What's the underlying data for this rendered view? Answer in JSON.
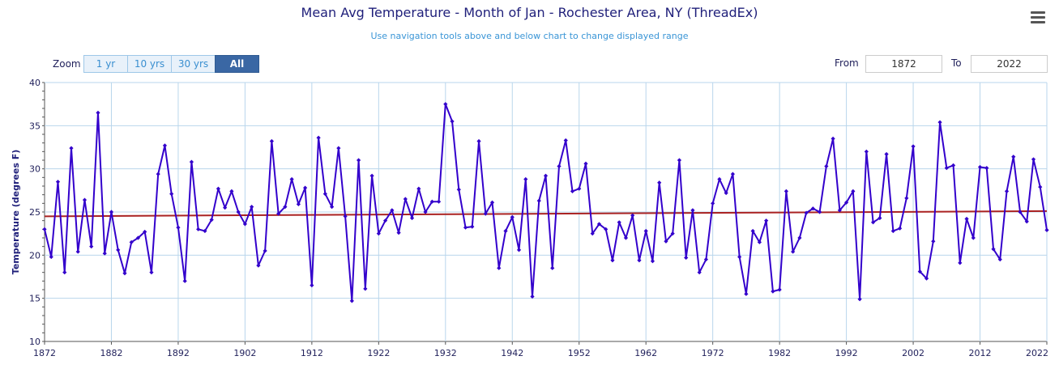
{
  "header": {
    "title": "Mean Avg Temperature - Month of Jan - Rochester Area, NY (ThreadEx)",
    "subtitle": "Use navigation tools above and below chart to change displayed range"
  },
  "toolbar": {
    "zoom_label": "Zoom",
    "zoom_buttons": [
      "1 yr",
      "10 yrs",
      "30 yrs",
      "All"
    ],
    "active_zoom": "All",
    "from_label": "From",
    "from_value": "1872",
    "to_label": "To",
    "to_value": "2022",
    "menu_icon": "hamburger-menu-icon"
  },
  "colors": {
    "series": "#3300cc",
    "trend": "#aa2222",
    "grid": "#b9d6ec",
    "active_button": "#3a67a4"
  },
  "chart_data": {
    "type": "line",
    "title": "Mean Avg Temperature - Month of Jan - Rochester Area, NY (ThreadEx)",
    "xlabel": "",
    "ylabel": "Temperature (degrees F)",
    "xlim": [
      1872,
      2022
    ],
    "ylim": [
      10,
      40
    ],
    "yticks": [
      10,
      15,
      20,
      25,
      30,
      35,
      40
    ],
    "xticks": [
      1872,
      1882,
      1892,
      1902,
      1912,
      1922,
      1932,
      1942,
      1952,
      1962,
      1972,
      1982,
      1992,
      2002,
      2012,
      2022
    ],
    "grid": true,
    "x_start": 1872,
    "series": [
      {
        "values": [
          23.0,
          19.8,
          28.5,
          18.0,
          32.4,
          20.4,
          26.4,
          21.0,
          36.5,
          20.2,
          25.0,
          20.6,
          17.9,
          21.5,
          22.0,
          22.7,
          18.0,
          29.4,
          32.7,
          27.1,
          23.2,
          17.0,
          30.8,
          23.0,
          22.8,
          24.1,
          27.7,
          25.5,
          27.4,
          25.0,
          23.6,
          25.6,
          18.8,
          20.5,
          33.2,
          24.8,
          25.6,
          28.8,
          25.9,
          27.8,
          16.5,
          33.6,
          27.1,
          25.6,
          32.4,
          24.5,
          14.7,
          31.0,
          16.1,
          29.2,
          22.5,
          24.0,
          25.2,
          22.6,
          26.5,
          24.3,
          27.7,
          25.0,
          26.2,
          26.2,
          37.5,
          35.5,
          27.6,
          23.2,
          23.3,
          33.2,
          24.8,
          26.1,
          18.5,
          22.8,
          24.4,
          20.6,
          28.8,
          15.2,
          26.3,
          29.2,
          18.5,
          30.3,
          33.3,
          27.4,
          27.7,
          30.6,
          22.5,
          23.6,
          23.0,
          19.4,
          23.8,
          22.0,
          24.6,
          19.4,
          22.8,
          19.3,
          28.4,
          21.6,
          22.5,
          31.0,
          19.7,
          25.2,
          18.0,
          19.5,
          26.0,
          28.8,
          27.2,
          29.4,
          19.8,
          15.5,
          22.8,
          21.5,
          24.0,
          15.8,
          16.0,
          27.4,
          20.4,
          22.0,
          24.9,
          25.4,
          25.0,
          30.3,
          33.5,
          25.2,
          26.1,
          27.4,
          14.9,
          32.0,
          23.8,
          24.3,
          31.7,
          22.8,
          23.1,
          26.6,
          32.6,
          18.1,
          17.3,
          21.6,
          35.4,
          30.1,
          30.4,
          19.1,
          24.2,
          22.0,
          30.2,
          30.1,
          20.7,
          19.5,
          27.4,
          31.4,
          25.0,
          23.9,
          31.1,
          27.9,
          22.9
        ]
      },
      {
        "type": "trend",
        "values_at_xlim": [
          24.5,
          25.1
        ]
      }
    ]
  }
}
